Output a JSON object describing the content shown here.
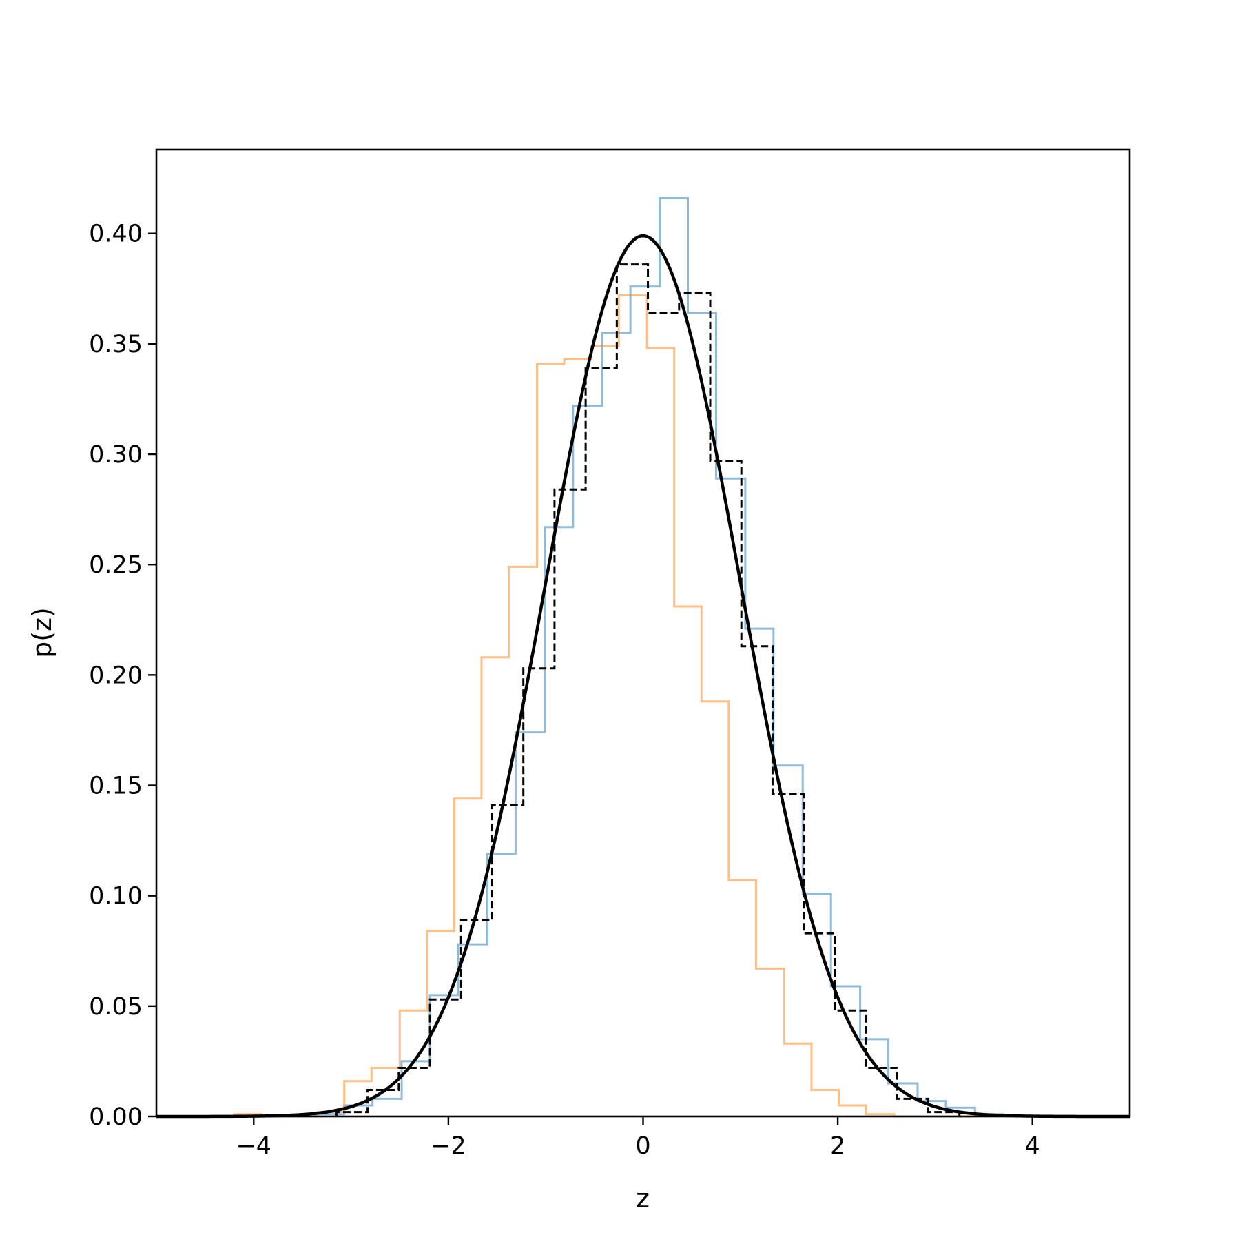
{
  "chart_data": {
    "type": "histogram",
    "title": "",
    "xlabel": "z",
    "ylabel": "p(z)",
    "xlim": [
      -5,
      5
    ],
    "ylim": [
      0,
      0.438
    ],
    "xticks": [
      -4,
      -2,
      0,
      2,
      4
    ],
    "xtick_labels": [
      "−4",
      "−2",
      "0",
      "2",
      "4"
    ],
    "yticks": [
      0.0,
      0.05,
      0.1,
      0.15,
      0.2,
      0.25,
      0.3,
      0.35,
      0.4
    ],
    "ytick_labels": [
      "0.00",
      "0.05",
      "0.10",
      "0.15",
      "0.20",
      "0.25",
      "0.30",
      "0.35",
      "0.40"
    ],
    "grid": false,
    "legend": false,
    "series": [
      {
        "kind": "step-histogram",
        "color": "#1f77b4",
        "line_style": "solid",
        "edges": [
          -3.37,
          -3.07,
          -2.78,
          -2.48,
          -2.19,
          -1.9,
          -1.6,
          -1.31,
          -1.01,
          -0.72,
          -0.42,
          -0.13,
          0.17,
          0.46,
          0.75,
          1.05,
          1.34,
          1.64,
          1.93,
          2.23,
          2.52,
          2.82,
          3.11,
          3.41,
          3.7
        ],
        "values": [
          0.001,
          0.005,
          0.008,
          0.025,
          0.055,
          0.078,
          0.119,
          0.174,
          0.267,
          0.322,
          0.355,
          0.376,
          0.416,
          0.364,
          0.289,
          0.221,
          0.159,
          0.101,
          0.059,
          0.035,
          0.015,
          0.007,
          0.004,
          0.001
        ]
      },
      {
        "kind": "step-histogram",
        "color": "#ff7f0e",
        "line_style": "solid",
        "edges": [
          -4.2,
          -3.92,
          -3.63,
          -3.35,
          -3.07,
          -2.79,
          -2.5,
          -2.22,
          -1.94,
          -1.66,
          -1.38,
          -1.09,
          -0.81,
          -0.53,
          -0.25,
          0.04,
          0.32,
          0.6,
          0.88,
          1.16,
          1.45,
          1.73,
          2.01,
          2.29,
          2.58,
          2.86,
          3.14,
          3.42
        ],
        "values": [
          0.001,
          0.0,
          0.0,
          0.002,
          0.016,
          0.022,
          0.048,
          0.084,
          0.144,
          0.208,
          0.249,
          0.341,
          0.343,
          0.349,
          0.372,
          0.348,
          0.231,
          0.188,
          0.107,
          0.067,
          0.033,
          0.012,
          0.005,
          0.001,
          0.0,
          0.0,
          0.0
        ]
      },
      {
        "kind": "step-histogram",
        "color": "#000000",
        "line_style": "dashed",
        "edges": [
          -3.15,
          -2.83,
          -2.51,
          -2.19,
          -1.87,
          -1.55,
          -1.23,
          -0.91,
          -0.59,
          -0.27,
          0.05,
          0.37,
          0.69,
          1.01,
          1.33,
          1.65,
          1.97,
          2.29,
          2.61,
          2.93,
          3.25
        ],
        "values": [
          0.002,
          0.012,
          0.022,
          0.053,
          0.089,
          0.141,
          0.203,
          0.284,
          0.339,
          0.386,
          0.364,
          0.373,
          0.297,
          0.213,
          0.146,
          0.083,
          0.048,
          0.022,
          0.008,
          0.002
        ]
      },
      {
        "kind": "line",
        "color": "#000000",
        "line_style": "solid",
        "function": "standard-normal-pdf",
        "mean": 0,
        "std": 1
      }
    ]
  }
}
